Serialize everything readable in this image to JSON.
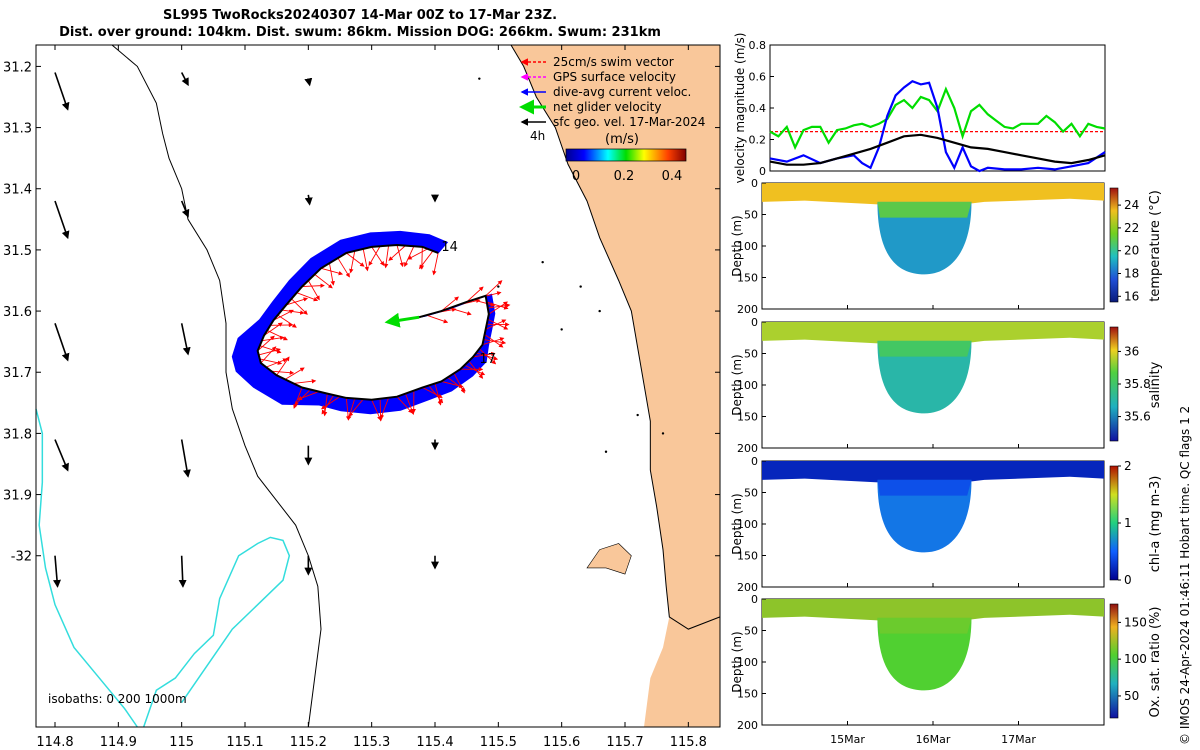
{
  "title_line1": "SL995 TwoRocks20240307 14-Mar 00Z to 17-Mar 23Z.",
  "title_line2": "Dist. over ground: 104km. Dist. swum: 86km. Mission DOG: 266km. Swum: 231km",
  "credit": "© IMOS 24-Apr-2024 01:46:11 Hobart time. QC flags 1  2",
  "colors": {
    "land": "#f9c79a",
    "swim": "#ff0000",
    "gps": "#ff00ff",
    "dive": "#0000ff",
    "net": "#00dd00",
    "sfc": "#000000",
    "isobath": "#33dddd"
  },
  "chart_data": [
    {
      "type": "map",
      "xlim": [
        114.77,
        115.85
      ],
      "ylim": [
        -32.28,
        -31.165
      ],
      "x_ticks": [
        "114.8",
        "114.9",
        "115",
        "115.1",
        "115.2",
        "115.3",
        "115.4",
        "115.5",
        "115.6",
        "115.7",
        "115.8"
      ],
      "x_tick_values": [
        114.8,
        114.9,
        115.0,
        115.1,
        115.2,
        115.3,
        115.4,
        115.5,
        115.6,
        115.7,
        115.8
      ],
      "y_ticks": [
        "31.2",
        "31.3",
        "31.4",
        "31.5",
        "31.6",
        "31.7",
        "31.8",
        "31.9",
        "-32"
      ],
      "y_tick_values": [
        -31.2,
        -31.3,
        -31.4,
        -31.5,
        -31.6,
        -31.7,
        -31.8,
        -31.9,
        -32.0
      ],
      "legend": {
        "entries": [
          "25cm/s swim vector",
          "GPS surface velocity",
          "dive-avg current veloc.",
          "net glider velocity",
          "sfc geo. vel. 17-Mar-2024"
        ],
        "scale_label": "4h",
        "colorbar_title": "(m/s)",
        "colorbar_ticks": [
          "0",
          "0.2",
          "0.4"
        ],
        "colorbar_range": [
          0,
          0.5
        ]
      },
      "isobaths_label": "isobaths: 0   200  1000m",
      "day_labels": [
        {
          "text": "14",
          "lon": 115.41,
          "lat": -31.502
        },
        {
          "text": "17",
          "lon": 115.47,
          "lat": -31.685
        }
      ],
      "glider_track": [
        [
          115.405,
          -31.505
        ],
        [
          115.38,
          -31.495
        ],
        [
          115.34,
          -31.492
        ],
        [
          115.3,
          -31.495
        ],
        [
          115.26,
          -31.505
        ],
        [
          115.22,
          -31.53
        ],
        [
          115.19,
          -31.56
        ],
        [
          115.165,
          -31.59
        ],
        [
          115.145,
          -31.615
        ],
        [
          115.13,
          -31.64
        ],
        [
          115.12,
          -31.665
        ],
        [
          115.125,
          -31.685
        ],
        [
          115.15,
          -31.705
        ],
        [
          115.19,
          -31.725
        ],
        [
          115.23,
          -31.735
        ],
        [
          115.26,
          -31.742
        ],
        [
          115.3,
          -31.745
        ],
        [
          115.34,
          -31.74
        ],
        [
          115.38,
          -31.725
        ],
        [
          115.41,
          -31.715
        ],
        [
          115.44,
          -31.695
        ],
        [
          115.46,
          -31.675
        ],
        [
          115.475,
          -31.655
        ],
        [
          115.48,
          -31.63
        ],
        [
          115.485,
          -31.605
        ],
        [
          115.48,
          -31.575
        ],
        [
          115.45,
          -31.585
        ],
        [
          115.41,
          -31.6
        ],
        [
          115.375,
          -31.61
        ]
      ],
      "net_velocity": {
        "lon": 115.375,
        "lat": -31.61,
        "dlon": -0.05,
        "dlat": -0.008
      },
      "geostrophic_vectors": [
        {
          "lon": 114.8,
          "lat": -31.21,
          "dlon": 0.02,
          "dlat": -0.06
        },
        {
          "lon": 114.8,
          "lat": -31.42,
          "dlon": 0.02,
          "dlat": -0.06
        },
        {
          "lon": 114.8,
          "lat": -31.62,
          "dlon": 0.02,
          "dlat": -0.06
        },
        {
          "lon": 114.8,
          "lat": -31.81,
          "dlon": 0.02,
          "dlat": -0.05
        },
        {
          "lon": 114.8,
          "lat": -32.0,
          "dlon": 0.004,
          "dlat": -0.05
        },
        {
          "lon": 115.0,
          "lat": -31.21,
          "dlon": 0.01,
          "dlat": -0.02
        },
        {
          "lon": 115.0,
          "lat": -31.42,
          "dlon": 0.01,
          "dlat": -0.025
        },
        {
          "lon": 115.0,
          "lat": -31.62,
          "dlon": 0.01,
          "dlat": -0.05
        },
        {
          "lon": 115.0,
          "lat": -31.81,
          "dlon": 0.01,
          "dlat": -0.06
        },
        {
          "lon": 115.0,
          "lat": -32.0,
          "dlon": 0.002,
          "dlat": -0.05
        },
        {
          "lon": 115.2,
          "lat": -31.22,
          "dlon": 0.002,
          "dlat": -0.01
        },
        {
          "lon": 115.2,
          "lat": -31.41,
          "dlon": 0.002,
          "dlat": -0.015
        },
        {
          "lon": 115.2,
          "lat": -31.82,
          "dlon": 0.0,
          "dlat": -0.03
        },
        {
          "lon": 115.2,
          "lat": -32.0,
          "dlon": 0.0,
          "dlat": -0.03
        },
        {
          "lon": 115.4,
          "lat": -31.41,
          "dlon": 0.0,
          "dlat": -0.01
        },
        {
          "lon": 115.4,
          "lat": -31.81,
          "dlon": 0.0,
          "dlat": -0.015
        },
        {
          "lon": 115.4,
          "lat": -32.0,
          "dlon": 0.0,
          "dlat": -0.02
        }
      ],
      "isobath_1000m": [
        [
          114.77,
          -31.76
        ],
        [
          114.78,
          -31.8
        ],
        [
          114.78,
          -31.88
        ],
        [
          114.775,
          -31.95
        ],
        [
          114.785,
          -32.02
        ],
        [
          114.8,
          -32.08
        ],
        [
          114.83,
          -32.15
        ],
        [
          114.87,
          -32.2
        ],
        [
          114.91,
          -32.25
        ],
        [
          114.93,
          -32.28
        ]
      ],
      "isobath_1000m_b": [
        [
          114.94,
          -32.28
        ],
        [
          114.96,
          -32.22
        ],
        [
          114.99,
          -32.2
        ],
        [
          115.02,
          -32.16
        ],
        [
          115.05,
          -32.13
        ],
        [
          115.06,
          -32.07
        ],
        [
          115.09,
          -32.0
        ],
        [
          115.12,
          -31.98
        ],
        [
          115.14,
          -31.97
        ],
        [
          115.16,
          -31.975
        ],
        [
          115.17,
          -32.0
        ],
        [
          115.16,
          -32.04
        ],
        [
          115.12,
          -32.08
        ],
        [
          115.08,
          -32.12
        ],
        [
          115.04,
          -32.18
        ],
        [
          115.0,
          -32.24
        ]
      ],
      "isobath_200m": [
        [
          114.89,
          -31.165
        ],
        [
          114.93,
          -31.2
        ],
        [
          114.96,
          -31.26
        ],
        [
          114.97,
          -31.31
        ],
        [
          114.98,
          -31.35
        ],
        [
          115.0,
          -31.4
        ],
        [
          115.01,
          -31.45
        ],
        [
          115.04,
          -31.5
        ],
        [
          115.06,
          -31.55
        ],
        [
          115.07,
          -31.62
        ],
        [
          115.07,
          -31.7
        ],
        [
          115.08,
          -31.76
        ],
        [
          115.1,
          -31.82
        ],
        [
          115.12,
          -31.87
        ],
        [
          115.15,
          -31.91
        ],
        [
          115.18,
          -31.95
        ],
        [
          115.2,
          -32.0
        ],
        [
          115.215,
          -32.05
        ],
        [
          115.22,
          -32.12
        ],
        [
          115.21,
          -32.2
        ],
        [
          115.2,
          -32.28
        ]
      ],
      "coastline": [
        [
          115.52,
          -31.165
        ],
        [
          115.54,
          -31.2
        ],
        [
          115.56,
          -31.25
        ],
        [
          115.59,
          -31.3
        ],
        [
          115.61,
          -31.36
        ],
        [
          115.64,
          -31.42
        ],
        [
          115.66,
          -31.48
        ],
        [
          115.69,
          -31.55
        ],
        [
          115.71,
          -31.6
        ],
        [
          115.72,
          -31.66
        ],
        [
          115.73,
          -31.72
        ],
        [
          115.74,
          -31.78
        ],
        [
          115.74,
          -31.86
        ],
        [
          115.75,
          -31.92
        ],
        [
          115.76,
          -31.99
        ],
        [
          115.765,
          -32.05
        ],
        [
          115.77,
          -32.1
        ],
        [
          115.8,
          -32.12
        ],
        [
          115.85,
          -32.1
        ]
      ]
    },
    {
      "type": "line",
      "ylabel": "velocity magnitude (m/s)",
      "ylim": [
        0,
        0.8
      ],
      "y_ticks": [
        "0",
        "0.2",
        "0.4",
        "0.6",
        "0.8"
      ],
      "series": [
        {
          "name": "swim",
          "color": "#ff0000",
          "style": "dashed",
          "x": [
            0,
            4
          ],
          "values": [
            0.25,
            0.25
          ]
        },
        {
          "name": "net glider velocity",
          "color": "#00dd00",
          "x": [
            0,
            0.1,
            0.2,
            0.3,
            0.4,
            0.5,
            0.6,
            0.7,
            0.8,
            0.9,
            1.0,
            1.1,
            1.2,
            1.3,
            1.4,
            1.5,
            1.6,
            1.7,
            1.8,
            1.9,
            2.0,
            2.1,
            2.2,
            2.3,
            2.4,
            2.5,
            2.6,
            2.7,
            2.8,
            2.9,
            3.0,
            3.1,
            3.2,
            3.3,
            3.4,
            3.5,
            3.6,
            3.7,
            3.8,
            3.9,
            4.0
          ],
          "values": [
            0.25,
            0.22,
            0.28,
            0.15,
            0.26,
            0.28,
            0.28,
            0.18,
            0.26,
            0.27,
            0.29,
            0.3,
            0.28,
            0.3,
            0.33,
            0.42,
            0.45,
            0.4,
            0.47,
            0.45,
            0.38,
            0.52,
            0.4,
            0.22,
            0.38,
            0.42,
            0.36,
            0.32,
            0.28,
            0.27,
            0.3,
            0.3,
            0.3,
            0.35,
            0.31,
            0.25,
            0.3,
            0.22,
            0.3,
            0.28,
            0.27
          ]
        },
        {
          "name": "dive-avg current veloc.",
          "color": "#0000ff",
          "x": [
            0,
            0.2,
            0.4,
            0.6,
            0.8,
            1.0,
            1.1,
            1.2,
            1.3,
            1.4,
            1.5,
            1.6,
            1.7,
            1.8,
            1.9,
            2.0,
            2.1,
            2.2,
            2.3,
            2.4,
            2.5,
            2.6,
            2.8,
            3.0,
            3.2,
            3.4,
            3.6,
            3.8,
            4.0
          ],
          "values": [
            0.08,
            0.06,
            0.1,
            0.05,
            0.08,
            0.1,
            0.05,
            0.02,
            0.15,
            0.35,
            0.48,
            0.53,
            0.57,
            0.55,
            0.56,
            0.4,
            0.12,
            0.02,
            0.15,
            0.03,
            0.0,
            0.02,
            0.01,
            0.01,
            0.02,
            0.01,
            0.03,
            0.05,
            0.12
          ]
        },
        {
          "name": "sfc geo. vel.",
          "color": "#000000",
          "x": [
            0,
            0.2,
            0.4,
            0.6,
            0.8,
            1.0,
            1.2,
            1.4,
            1.6,
            1.8,
            2.0,
            2.2,
            2.4,
            2.6,
            2.8,
            3.0,
            3.2,
            3.4,
            3.6,
            3.8,
            4.0
          ],
          "values": [
            0.06,
            0.04,
            0.04,
            0.05,
            0.08,
            0.11,
            0.14,
            0.18,
            0.22,
            0.23,
            0.21,
            0.18,
            0.15,
            0.14,
            0.12,
            0.1,
            0.08,
            0.06,
            0.05,
            0.07,
            0.1
          ]
        }
      ]
    },
    {
      "type": "heatmap",
      "sections": [
        {
          "ylabel": "Depth (m)",
          "cbar_label": "temperature (°C)",
          "cbar_ticks": [
            "16",
            "18",
            "20",
            "22",
            "24"
          ],
          "cbar_range": [
            15.5,
            25.5
          ],
          "colormap": "thermal",
          "surface_value": 23.5,
          "deep_value": 18.8
        },
        {
          "ylabel": "Depth (m)",
          "cbar_label": "salinity",
          "cbar_ticks": [
            "35.6",
            "35.8",
            "36"
          ],
          "cbar_range": [
            35.45,
            36.15
          ],
          "colormap": "haline",
          "surface_value": 35.95,
          "deep_value": 35.7
        },
        {
          "ylabel": "Depth (m)",
          "cbar_label": "chl-a (mg m-3)",
          "cbar_ticks": [
            "0",
            "1",
            "2"
          ],
          "cbar_range": [
            0,
            2
          ],
          "colormap": "algae",
          "surface_value": 0.2,
          "deep_value": 0.6
        },
        {
          "ylabel": "Depth (m)",
          "cbar_label": "Ox. sat. ratio (%)",
          "cbar_ticks": [
            "50",
            "100",
            "150"
          ],
          "cbar_range": [
            20,
            175
          ],
          "colormap": "oxy",
          "surface_value": 120,
          "deep_value": 105
        }
      ],
      "depth_ticks": [
        "0",
        "50",
        "100",
        "150",
        "200"
      ],
      "depth_range": [
        0,
        200
      ],
      "x_ticks": [
        "15Mar",
        "16Mar",
        "17Mar"
      ],
      "x_tick_values": [
        1.0,
        2.0,
        3.0
      ],
      "time_range": [
        0,
        4
      ]
    }
  ]
}
